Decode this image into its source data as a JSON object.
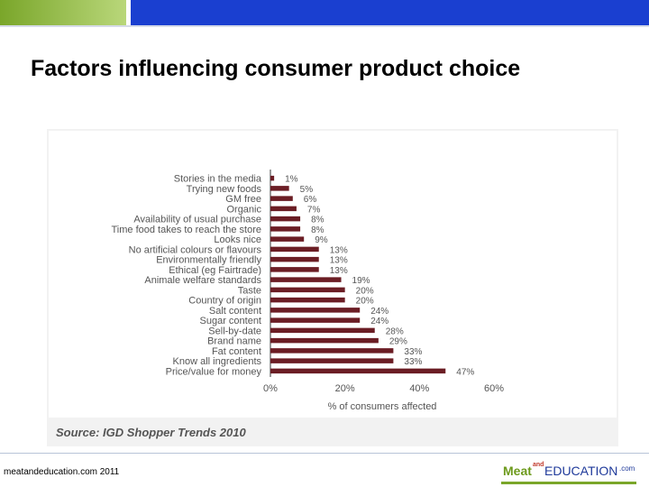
{
  "slide": {
    "title": "Factors influencing consumer product choice",
    "source": "Source: IGD Shopper Trends 2010",
    "footer": "meatandeducation.com 2011"
  },
  "logo": {
    "part1": "Meat",
    "part2": "and",
    "part3": "EDUCATION",
    "part4": ".com"
  },
  "colors": {
    "bar": "#6b1d24",
    "label": "#555555",
    "accent_blue": "#1a3fd0",
    "accent_green": "#7aa62a"
  },
  "chart_data": {
    "type": "bar",
    "orientation": "horizontal",
    "title": "",
    "xlabel": "% of consumers affected",
    "ylabel": "",
    "xlim": [
      0,
      60
    ],
    "xticks": [
      0,
      20,
      40,
      60
    ],
    "xtick_labels": [
      "0%",
      "20%",
      "40%",
      "60%"
    ],
    "grid": false,
    "categories": [
      "Stories in the media",
      "Trying new foods",
      "GM free",
      "Organic",
      "Availability of usual purchase",
      "Time food takes to reach the store",
      "Looks nice",
      "No artificial colours or flavours",
      "Environmentally friendly",
      "Ethical (eg Fairtrade)",
      "Animale welfare standards",
      "Taste",
      "Country of origin",
      "Salt content",
      "Sugar content",
      "Sell-by-date",
      "Brand name",
      "Fat content",
      "Know all ingredients",
      "Price/value for money"
    ],
    "values": [
      1,
      5,
      6,
      7,
      8,
      8,
      9,
      13,
      13,
      13,
      19,
      20,
      20,
      24,
      24,
      28,
      29,
      33,
      33,
      47
    ],
    "value_labels": [
      "1%",
      "5%",
      "6%",
      "7%",
      "8%",
      "8%",
      "9%",
      "13%",
      "13%",
      "13%",
      "19%",
      "20%",
      "20%",
      "24%",
      "24%",
      "28%",
      "29%",
      "33%",
      "33%",
      "47%"
    ]
  }
}
